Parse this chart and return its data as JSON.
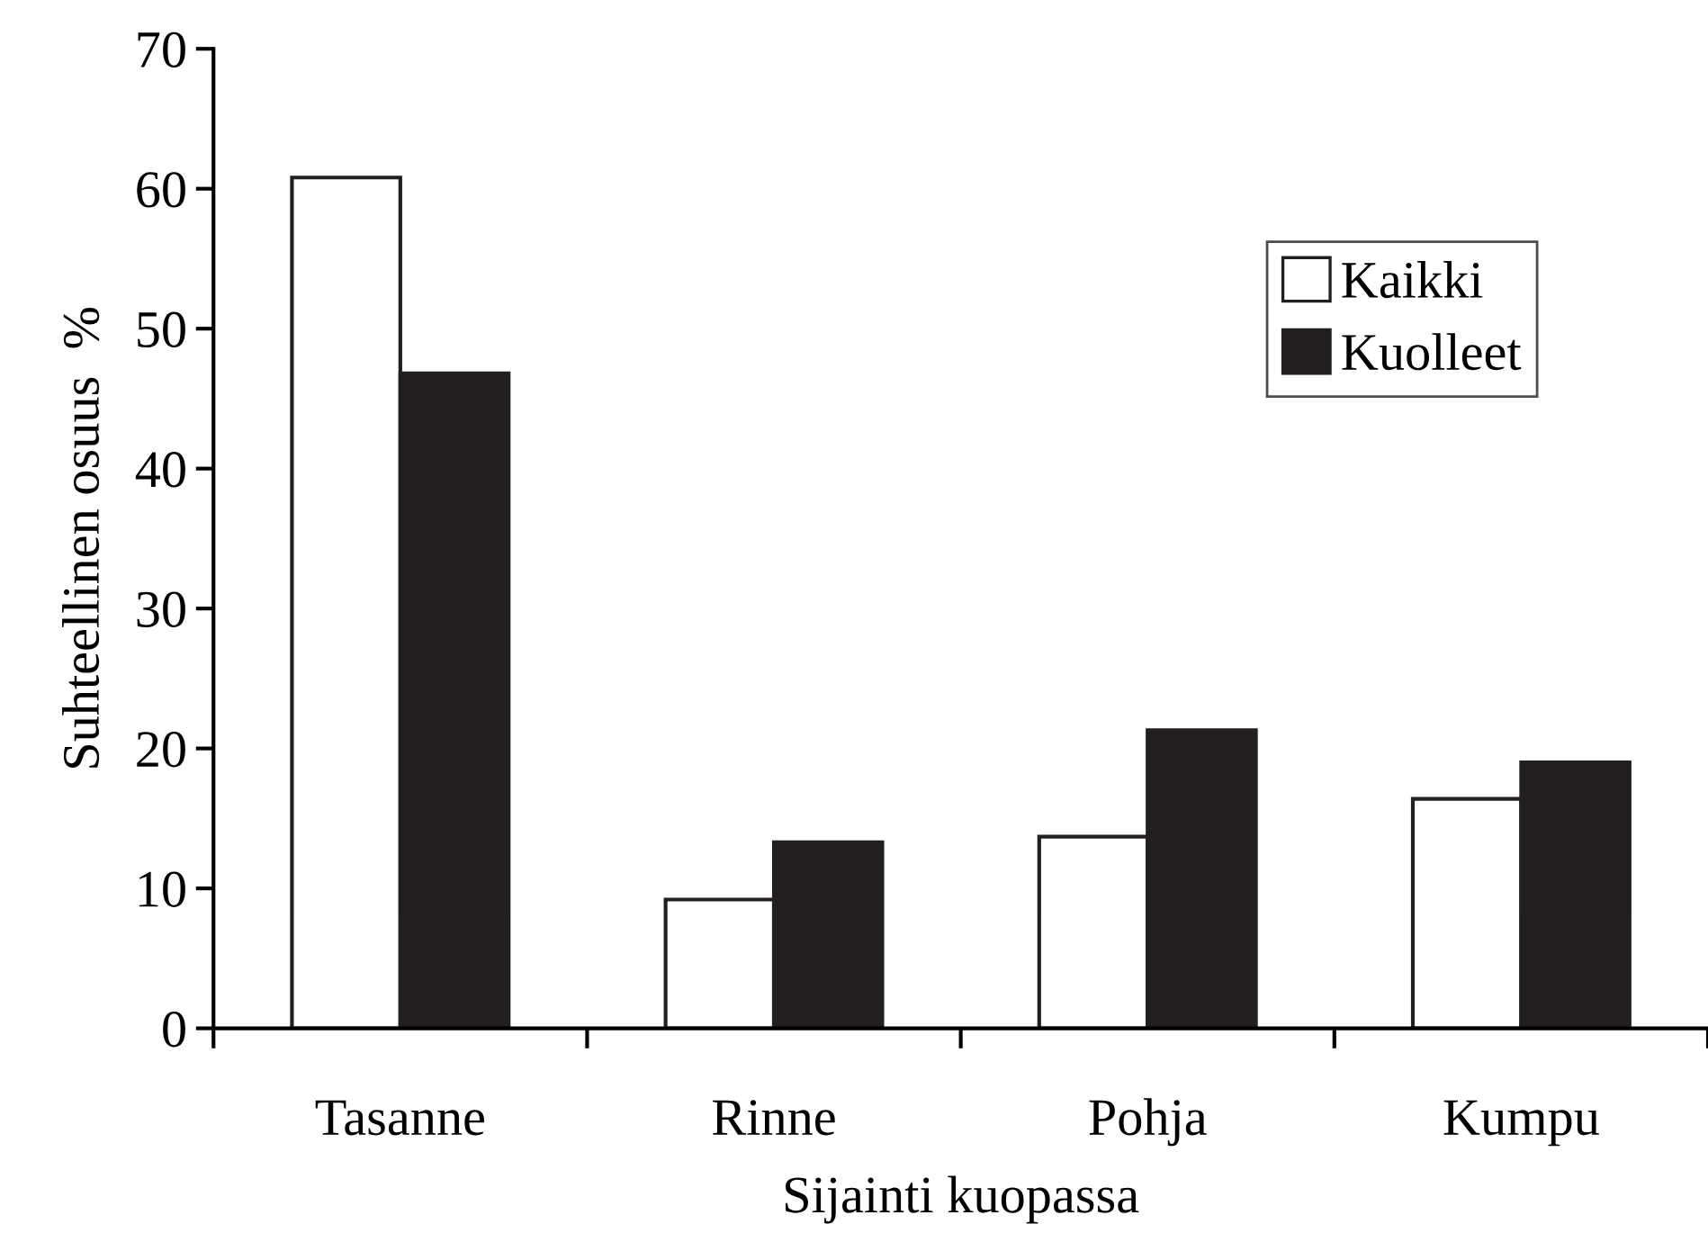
{
  "chart_data": {
    "type": "bar",
    "xlabel": "Sijainti kuopassa",
    "ylabel": "Suhteellinen osuus  %",
    "categories": [
      "Tasanne",
      "Rinne",
      "Pohja",
      "Kumpu"
    ],
    "series": [
      {
        "name": "Kaikki",
        "color": "#ffffff",
        "values": [
          60.8,
          9.2,
          13.7,
          16.4
        ]
      },
      {
        "name": "Kuolleet",
        "color": "#231f20",
        "values": [
          46.8,
          13.3,
          21.3,
          19.0
        ]
      }
    ],
    "ylim": [
      0,
      70
    ],
    "yticks": [
      0,
      10,
      20,
      30,
      40,
      50,
      60,
      70
    ],
    "grid": false,
    "legend": "top right"
  }
}
